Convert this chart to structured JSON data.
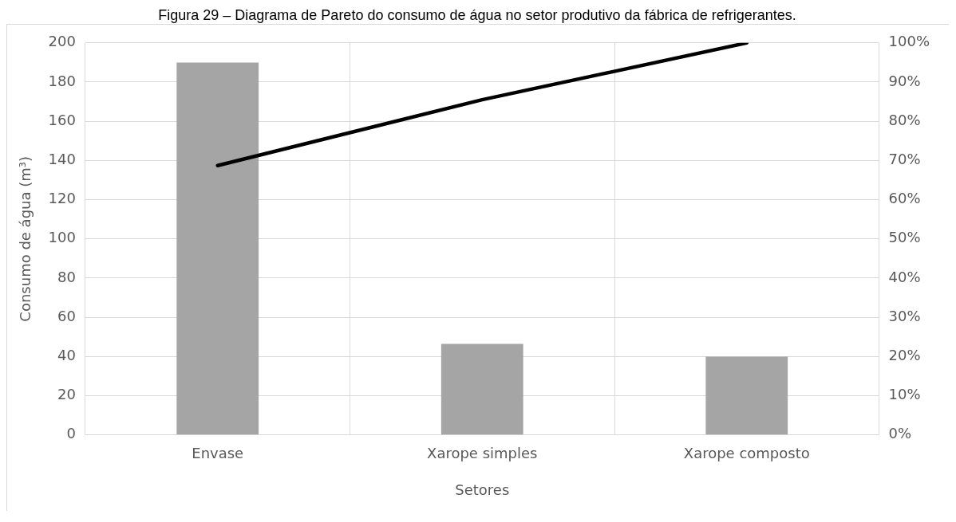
{
  "chart_data": {
    "type": "bar",
    "title": "Figura 29 – Diagrama de Pareto do consumo de água no setor produtivo da fábrica de refrigerantes.",
    "xlabel": "Setores",
    "ylabel": "Consumo de água (m³)",
    "categories": [
      "Envase",
      "Xarope simples",
      "Xarope composto"
    ],
    "series": [
      {
        "color": "#a5a5a5",
        "values": [
          190,
          46.5,
          40
        ]
      },
      {
        "type": "line",
        "color": "#000000",
        "axis": "y2",
        "values": [
          68.7,
          85.5,
          100
        ]
      }
    ],
    "ylim": [
      0,
      200
    ],
    "yticks": [
      0,
      20,
      40,
      60,
      80,
      100,
      120,
      140,
      160,
      180,
      200
    ],
    "y2lim": [
      0,
      100
    ],
    "y2ticks": [
      {
        "value": 0,
        "label": "0%"
      },
      {
        "value": 10,
        "label": "10%"
      },
      {
        "value": 20,
        "label": "20%"
      },
      {
        "value": 30,
        "label": "30%"
      },
      {
        "value": 40,
        "label": "40%"
      },
      {
        "value": 50,
        "label": "50%"
      },
      {
        "value": 60,
        "label": "60%"
      },
      {
        "value": 70,
        "label": "70%"
      },
      {
        "value": 80,
        "label": "80%"
      },
      {
        "value": 90,
        "label": "90%"
      },
      {
        "value": 100,
        "label": "100%"
      }
    ],
    "grid": true,
    "legend": false,
    "marker": "none",
    "line_style": "solid"
  }
}
